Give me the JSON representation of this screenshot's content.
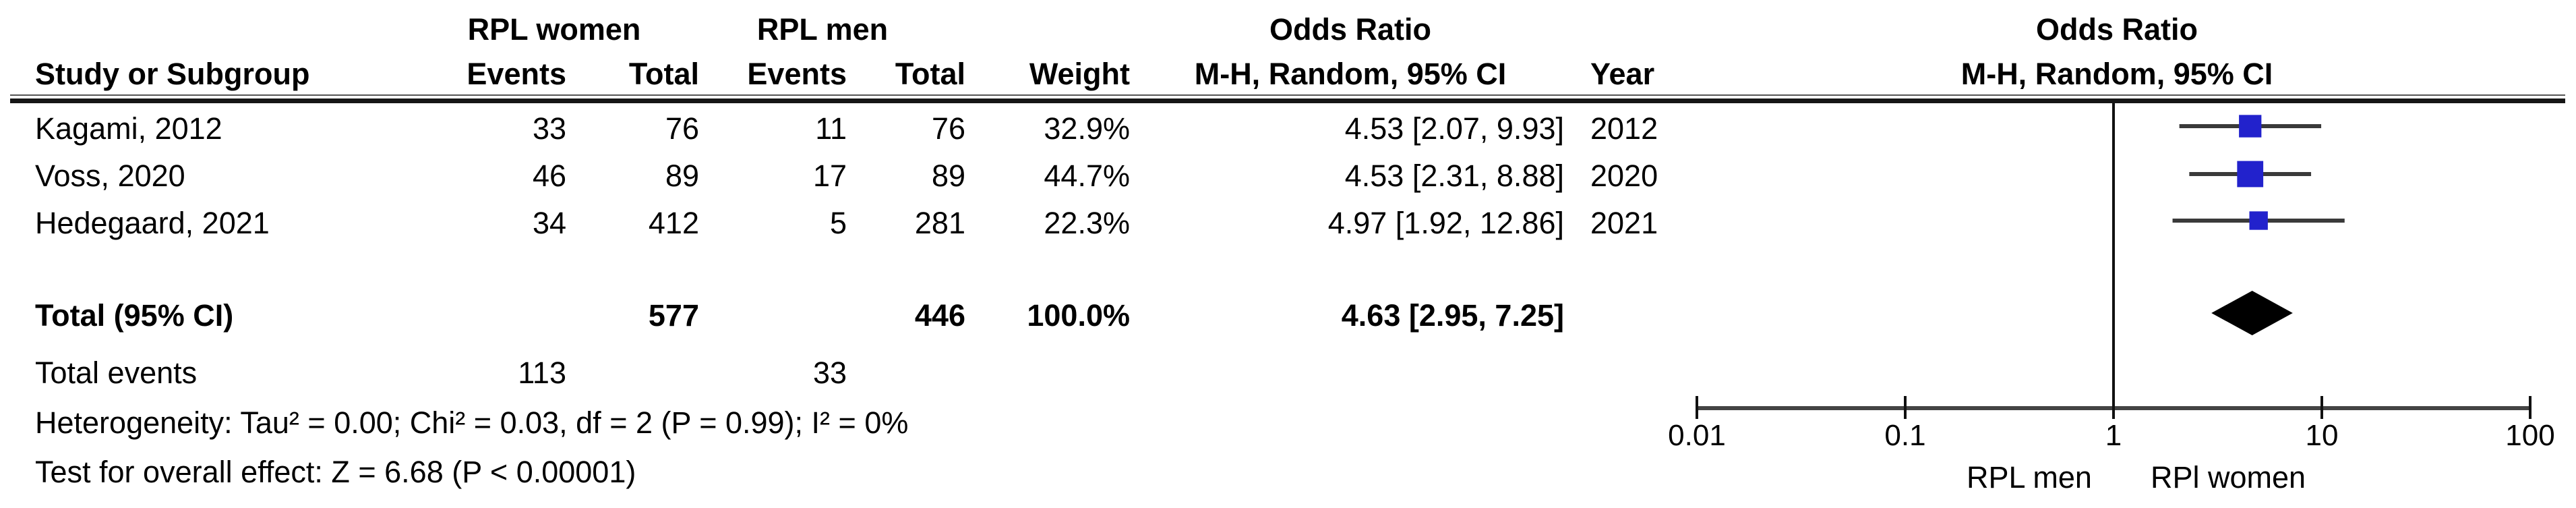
{
  "figure": {
    "group_headers": {
      "rpl_women": "RPL women",
      "rpl_men": "RPL men",
      "odds_ratio_left": "Odds Ratio",
      "odds_ratio_right": "Odds Ratio"
    },
    "col_headers": {
      "study": "Study or Subgroup",
      "events": "Events",
      "total": "Total",
      "weight": "Weight",
      "mh_ci": "M-H, Random, 95% CI",
      "year": "Year",
      "mh_ci_right": "M-H, Random, 95% CI"
    }
  },
  "table": {
    "studies": [
      {
        "name": "Kagami, 2012",
        "w_events": "33",
        "w_total": "76",
        "m_events": "11",
        "m_total": "76",
        "weight": "32.9%",
        "or_ci": "4.53 [2.07, 9.93]",
        "year": "2012"
      },
      {
        "name": "Voss, 2020",
        "w_events": "46",
        "w_total": "89",
        "m_events": "17",
        "m_total": "89",
        "weight": "44.7%",
        "or_ci": "4.53 [2.31, 8.88]",
        "year": "2020"
      },
      {
        "name": "Hedegaard, 2021",
        "w_events": "34",
        "w_total": "412",
        "m_events": "5",
        "m_total": "281",
        "weight": "22.3%",
        "or_ci": "4.97 [1.92, 12.86]",
        "year": "2021"
      }
    ],
    "total_row": {
      "label": "Total (95% CI)",
      "w_total": "577",
      "m_total": "446",
      "weight": "100.0%",
      "or_ci": "4.63 [2.95, 7.25]"
    },
    "total_events": {
      "label": "Total events",
      "w_events": "113",
      "m_events": "33"
    },
    "footnotes": {
      "heterogeneity": "Heterogeneity: Tau² = 0.00; Chi² = 0.03, df = 2 (P = 0.99); I² = 0%",
      "overall_effect": "Test for overall effect: Z = 6.68 (P < 0.00001)"
    }
  },
  "chart_data": {
    "type": "scatter",
    "subtype": "forest-plot",
    "x_scale": "log10",
    "xlim": [
      0.01,
      100
    ],
    "x_ticks": [
      0.01,
      0.1,
      1,
      10,
      100
    ],
    "x_tick_labels": [
      "0.01",
      "0.1",
      "1",
      "10",
      "100"
    ],
    "null_line": 1,
    "axis_left_label": "RPL men",
    "axis_right_label": "RPl women",
    "effect_measure": "Odds Ratio, M-H, Random, 95% CI",
    "studies": [
      {
        "name": "Kagami, 2012",
        "or": 4.53,
        "ci_low": 2.07,
        "ci_high": 9.93,
        "weight_pct": 32.9,
        "year": 2012
      },
      {
        "name": "Voss, 2020",
        "or": 4.53,
        "ci_low": 2.31,
        "ci_high": 8.88,
        "weight_pct": 44.7,
        "year": 2020
      },
      {
        "name": "Hedegaard, 2021",
        "or": 4.97,
        "ci_low": 1.92,
        "ci_high": 12.86,
        "weight_pct": 22.3,
        "year": 2021
      }
    ],
    "overall": {
      "or": 4.63,
      "ci_low": 2.95,
      "ci_high": 7.25
    },
    "colors": {
      "square": "#2222CC",
      "ci_line": "#3a3a3a",
      "diamond": "#000000",
      "null_line": "#111111",
      "axis": "#444444"
    }
  }
}
